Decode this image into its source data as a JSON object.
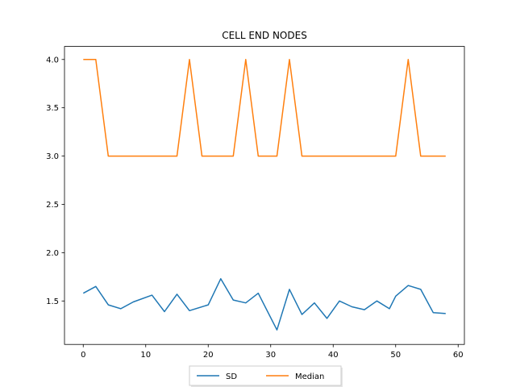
{
  "chart_data": {
    "type": "line",
    "title": "CELL END NODES",
    "xlabel": "",
    "ylabel": "",
    "xlim": [
      -3,
      61
    ],
    "ylim": [
      1.05,
      4.135
    ],
    "xticks": [
      0,
      10,
      20,
      30,
      40,
      50,
      60
    ],
    "yticks": [
      1.5,
      2.0,
      2.5,
      3.0,
      3.5,
      4.0
    ],
    "ytick_labels": [
      "1.5",
      "2.0",
      "2.5",
      "3.0",
      "3.5",
      "4.0"
    ],
    "grid": false,
    "legend_position": "bottom-center",
    "series": [
      {
        "name": "SD",
        "color": "#1f77b4",
        "x": [
          0,
          2,
          4,
          6,
          8,
          11,
          13,
          15,
          17,
          20,
          22,
          24,
          26,
          28,
          31,
          33,
          35,
          37,
          39,
          41,
          43,
          45,
          47,
          49,
          50,
          52,
          54,
          56,
          58
        ],
        "y": [
          1.58,
          1.65,
          1.46,
          1.42,
          1.49,
          1.56,
          1.39,
          1.57,
          1.4,
          1.46,
          1.73,
          1.51,
          1.48,
          1.58,
          1.2,
          1.62,
          1.36,
          1.48,
          1.32,
          1.5,
          1.44,
          1.41,
          1.5,
          1.42,
          1.55,
          1.66,
          1.62,
          1.38,
          1.37
        ]
      },
      {
        "name": "Median",
        "color": "#ff7f0e",
        "x": [
          0,
          2,
          4,
          15,
          17,
          19,
          24,
          26,
          28,
          31,
          33,
          35,
          50,
          52,
          54,
          58
        ],
        "y": [
          4.0,
          4.0,
          3.0,
          3.0,
          4.0,
          3.0,
          3.0,
          4.0,
          3.0,
          3.0,
          4.0,
          3.0,
          3.0,
          4.0,
          3.0,
          3.0
        ]
      }
    ]
  }
}
